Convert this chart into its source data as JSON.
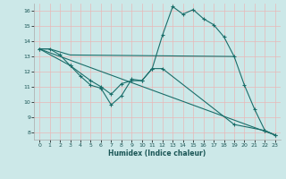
{
  "xlabel": "Humidex (Indice chaleur)",
  "xlim": [
    -0.5,
    23.5
  ],
  "ylim": [
    7.5,
    16.5
  ],
  "xticks": [
    0,
    1,
    2,
    3,
    4,
    5,
    6,
    7,
    8,
    9,
    10,
    11,
    12,
    13,
    14,
    15,
    16,
    17,
    18,
    19,
    20,
    21,
    22,
    23
  ],
  "yticks": [
    8,
    9,
    10,
    11,
    12,
    13,
    14,
    15,
    16
  ],
  "bg_color": "#cce8e8",
  "line_color": "#1a6e6a",
  "grid_color": "#b0d8d8",
  "lines": [
    {
      "x": [
        0,
        1,
        2,
        3,
        4,
        5,
        6,
        7,
        8,
        9,
        10,
        11,
        12,
        13,
        14,
        15,
        16,
        17,
        18,
        19,
        20,
        21,
        22,
        23
      ],
      "y": [
        13.5,
        13.5,
        13.1,
        12.4,
        11.7,
        11.1,
        10.9,
        9.8,
        10.4,
        11.5,
        11.4,
        12.2,
        14.4,
        16.3,
        15.8,
        16.1,
        15.5,
        15.1,
        14.3,
        13.0,
        11.1,
        9.5,
        8.1,
        7.8
      ],
      "marker": true
    },
    {
      "x": [
        0,
        1,
        3,
        19
      ],
      "y": [
        13.5,
        13.5,
        13.1,
        13.0
      ],
      "marker": false
    },
    {
      "x": [
        0,
        3,
        5,
        6,
        7,
        8,
        9,
        10,
        11,
        12,
        19,
        22,
        23
      ],
      "y": [
        13.5,
        12.4,
        11.4,
        11.0,
        10.5,
        11.2,
        11.4,
        11.4,
        12.2,
        12.2,
        8.5,
        8.1,
        7.8
      ],
      "marker": true
    },
    {
      "x": [
        0,
        23
      ],
      "y": [
        13.5,
        7.8
      ],
      "marker": false
    }
  ]
}
